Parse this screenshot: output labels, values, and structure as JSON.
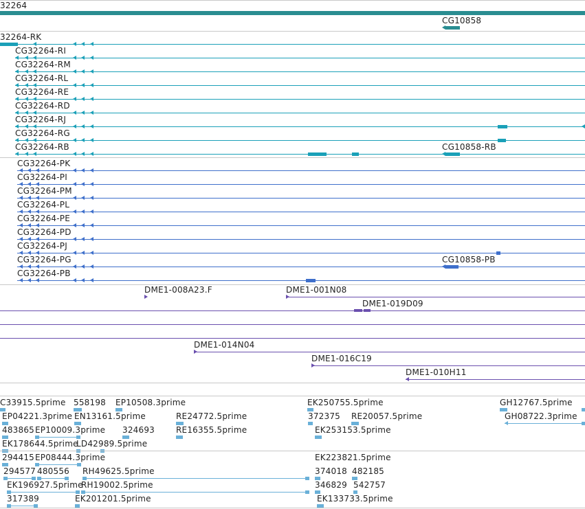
{
  "colors": {
    "gene": "#2a8d91",
    "cg": "#1aa0b8",
    "pb": "#3e6fcb",
    "dme": "#6a4fae",
    "est": "#6ab0d8",
    "sep": "#c8c8c8"
  },
  "gene_track": {
    "top_label": "32264",
    "cg10858": "CG10858"
  },
  "transcripts_rna": [
    {
      "label": "32264-RK"
    },
    {
      "label": "CG32264-RI"
    },
    {
      "label": "CG32264-RM"
    },
    {
      "label": "CG32264-RL"
    },
    {
      "label": "CG32264-RE"
    },
    {
      "label": "CG32264-RD"
    },
    {
      "label": "CG32264-RJ"
    },
    {
      "label": "CG32264-RG"
    },
    {
      "label": "CG32264-RB"
    }
  ],
  "rna_right_label": "CG10858-RB",
  "transcripts_protein": [
    {
      "label": "CG32264-PK"
    },
    {
      "label": "CG32264-PI"
    },
    {
      "label": "CG32264-PM"
    },
    {
      "label": "CG32264-PL"
    },
    {
      "label": "CG32264-PE"
    },
    {
      "label": "CG32264-PD"
    },
    {
      "label": "CG32264-PJ"
    },
    {
      "label": "CG32264-PG"
    },
    {
      "label": "CG32264-PB"
    }
  ],
  "protein_right_label": "CG10858-PB",
  "dme": [
    "DME1-008A23.F",
    "DME1-001N08",
    "DME1-019D09",
    "DME1-014N04",
    "DME1-016C19",
    "DME1-010H11"
  ],
  "ests": [
    "C33915.5prime",
    "558198",
    "EP10508.3prime",
    "EK250755.5prime",
    "GH12767.5prime",
    "EP04221.3prime",
    "EN13161.5prime",
    "RE24772.5prime",
    "372375",
    "RE20057.5prime",
    "GH08722.3prime",
    "483865",
    "EP10009.3prime",
    "324693",
    "RE16355.5prime",
    "EK253153.5prime",
    "EK178644.5prime",
    "LD42989.5prime",
    "294415",
    "EP08444.3prime",
    "EK223821.5prime",
    "294577",
    "480556",
    "RH49625.5prime",
    "374018",
    "482185",
    "EK196927.5prime",
    "RH19002.5prime",
    "346829",
    "542757",
    "317389",
    "EK201201.5prime",
    "EK133733.5prime"
  ]
}
